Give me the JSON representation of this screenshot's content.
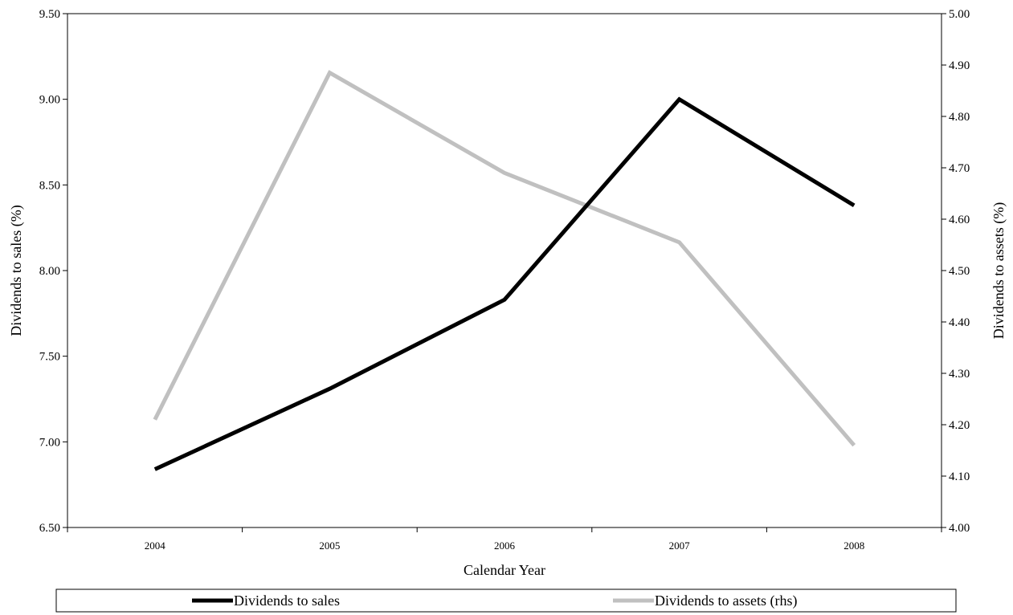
{
  "chart_data": {
    "type": "line",
    "title": "",
    "xlabel": "Calendar Year",
    "ylabel": "Dividends to sales (%)",
    "y2label": "Dividends to assets (%)",
    "categories": [
      "2004",
      "2005",
      "2006",
      "2007",
      "2008"
    ],
    "ylim": [
      6.5,
      9.5
    ],
    "y2lim": [
      4.0,
      5.0
    ],
    "yticks": [
      "6.50",
      "7.00",
      "7.50",
      "8.00",
      "8.50",
      "9.00",
      "9.50"
    ],
    "y2ticks": [
      "4.00",
      "4.10",
      "4.20",
      "4.30",
      "4.40",
      "4.50",
      "4.60",
      "4.70",
      "4.80",
      "4.90",
      "5.00"
    ],
    "series": [
      {
        "name": "Dividends to sales",
        "axis": "left",
        "color": "#000000",
        "values": [
          6.84,
          7.31,
          7.83,
          9.0,
          8.38
        ]
      },
      {
        "name": "Dividends to assets (rhs)",
        "axis": "right",
        "color": "#c0c0c0",
        "values": [
          4.21,
          4.885,
          4.69,
          4.555,
          4.16
        ]
      }
    ],
    "grid": false,
    "legend": "bottom"
  }
}
